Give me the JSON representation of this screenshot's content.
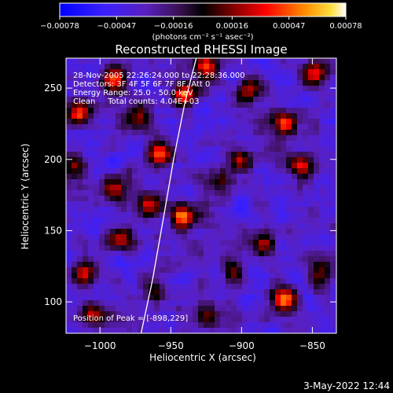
{
  "chart_data": {
    "type": "heatmap",
    "title": "Reconstructed RHESSI Image",
    "xlabel": "Heliocentric X (arcsec)",
    "ylabel": "Heliocentric Y (arcsec)",
    "xlim": [
      -1024,
      -833
    ],
    "ylim": [
      78,
      271
    ],
    "x_ticks": [
      -1000,
      -950,
      -900,
      -850
    ],
    "y_ticks": [
      100,
      150,
      200,
      250
    ],
    "x_tick_labels": [
      "−1000",
      "−950",
      "−900",
      "−850"
    ],
    "y_tick_labels": [
      "100",
      "150",
      "200",
      "250"
    ],
    "colorbar": {
      "min": -0.00078,
      "max": 0.00078,
      "ticks": [
        -0.00078,
        -0.00047,
        -0.00016,
        0.00016,
        0.00047,
        0.00078
      ],
      "tick_labels": [
        "−0.00078",
        "−0.00047",
        "−0.00016",
        "0.00016",
        "0.00047",
        "0.00078"
      ],
      "unit_label": "(photons cm⁻² s⁻¹ asec⁻²)"
    },
    "info_lines": [
      "28-Nov-2005 22:26:24.000 to 22:28:36.000",
      "Detectors: 3F 4F 5F 6F 7F 8F, Att 0",
      "Energy Range: 25.0 - 50.0 keV",
      "Clean     Total counts: 4.04E+03"
    ],
    "peak_label": "Position of Peak = [-898,229]",
    "peak_position": [
      -898,
      229
    ],
    "limb_line": [
      [
        -971,
        78
      ],
      [
        -963,
        115
      ],
      [
        -955,
        160
      ],
      [
        -948,
        200
      ],
      [
        -940,
        240
      ],
      [
        -932,
        271
      ]
    ],
    "bright_sources": [
      {
        "x": -990,
        "y": 257,
        "v": 0.8
      },
      {
        "x": -1015,
        "y": 232,
        "v": 0.7
      },
      {
        "x": -1018,
        "y": 196,
        "v": 0.55
      },
      {
        "x": -990,
        "y": 180,
        "v": 0.6
      },
      {
        "x": -972,
        "y": 230,
        "v": 0.6
      },
      {
        "x": -958,
        "y": 205,
        "v": 0.9
      },
      {
        "x": -942,
        "y": 160,
        "v": 1.0
      },
      {
        "x": -965,
        "y": 168,
        "v": 0.7
      },
      {
        "x": -985,
        "y": 145,
        "v": 0.65
      },
      {
        "x": -1010,
        "y": 120,
        "v": 0.65
      },
      {
        "x": -1005,
        "y": 92,
        "v": 0.6
      },
      {
        "x": -940,
        "y": 245,
        "v": 0.85
      },
      {
        "x": -925,
        "y": 265,
        "v": 0.75
      },
      {
        "x": -895,
        "y": 248,
        "v": 0.6
      },
      {
        "x": -870,
        "y": 225,
        "v": 0.95
      },
      {
        "x": -850,
        "y": 260,
        "v": 0.7
      },
      {
        "x": -858,
        "y": 195,
        "v": 0.65
      },
      {
        "x": -900,
        "y": 200,
        "v": 0.7
      },
      {
        "x": -915,
        "y": 185,
        "v": 0.5
      },
      {
        "x": -885,
        "y": 140,
        "v": 0.6
      },
      {
        "x": -905,
        "y": 120,
        "v": 0.5
      },
      {
        "x": -870,
        "y": 102,
        "v": 1.0
      },
      {
        "x": -845,
        "y": 120,
        "v": 0.6
      },
      {
        "x": -925,
        "y": 90,
        "v": 0.55
      },
      {
        "x": -960,
        "y": 105,
        "v": 0.4
      }
    ]
  },
  "footer": {
    "timestamp": "3-May-2022 12:44"
  }
}
